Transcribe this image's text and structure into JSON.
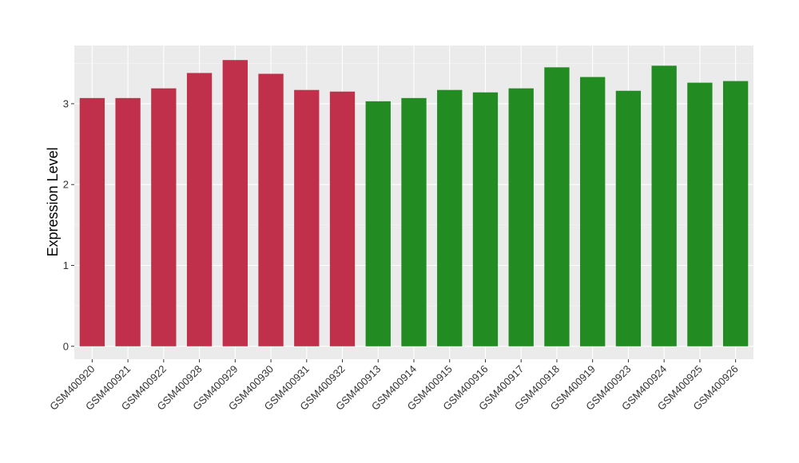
{
  "chart_data": {
    "type": "bar",
    "title": "",
    "xlabel": "",
    "ylabel": "Expression Level",
    "ylim": [
      -0.16,
      3.72
    ],
    "yticks": [
      0,
      1,
      2,
      3
    ],
    "grid": true,
    "legend": "none",
    "panel_color": "#ebebeb",
    "colors": {
      "group_a": "#c1304a",
      "group_b": "#228b22"
    },
    "categories": [
      "GSM400920",
      "GSM400921",
      "GSM400922",
      "GSM400928",
      "GSM400929",
      "GSM400930",
      "GSM400931",
      "GSM400932",
      "GSM400913",
      "GSM400914",
      "GSM400915",
      "GSM400916",
      "GSM400917",
      "GSM400918",
      "GSM400919",
      "GSM400923",
      "GSM400924",
      "GSM400925",
      "GSM400926"
    ],
    "values": [
      3.07,
      3.07,
      3.19,
      3.38,
      3.54,
      3.37,
      3.17,
      3.15,
      3.03,
      3.07,
      3.17,
      3.14,
      3.19,
      3.45,
      3.33,
      3.16,
      3.47,
      3.26,
      3.28
    ],
    "groups": [
      "a",
      "a",
      "a",
      "a",
      "a",
      "a",
      "a",
      "a",
      "b",
      "b",
      "b",
      "b",
      "b",
      "b",
      "b",
      "b",
      "b",
      "b",
      "b"
    ]
  }
}
